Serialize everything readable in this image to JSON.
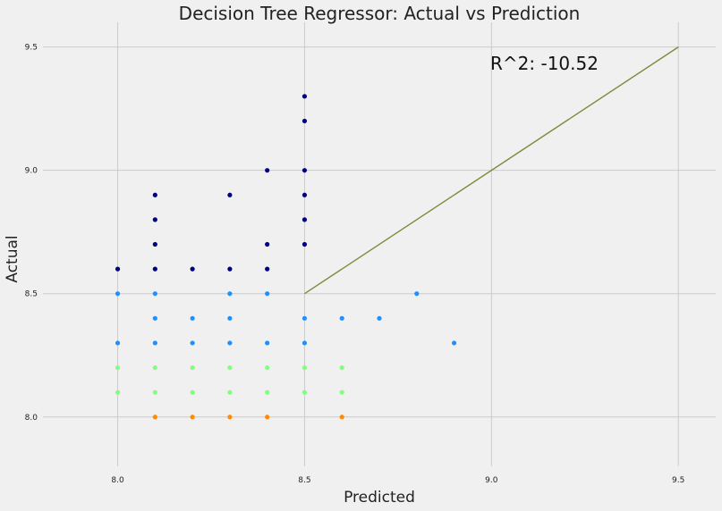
{
  "chart_data": {
    "type": "scatter",
    "title": "Decision Tree Regressor: Actual vs Prediction",
    "xlabel": "Predicted",
    "ylabel": "Actual",
    "xlim": [
      7.8,
      9.6
    ],
    "ylim": [
      7.8,
      9.6
    ],
    "xticks": [
      "8.0",
      "8.5",
      "9.0",
      "9.5"
    ],
    "yticks": [
      "8.0",
      "8.5",
      "9.0",
      "9.5"
    ],
    "grid": true,
    "annotation": {
      "text": "R^2: -10.52",
      "x": 9.0,
      "y": 9.5
    },
    "reference_line": {
      "x": [
        8.5,
        9.5
      ],
      "y": [
        8.5,
        9.5
      ],
      "color": "#7f8a3f"
    },
    "point_colors": {
      "8.0": "#ff8c00",
      "8.1": "#7fff7f",
      "8.2": "#7fff7f",
      "8.3": "#1e90ff",
      "8.4": "#1e90ff",
      "8.5": "#1e90ff",
      "high": "#000080"
    },
    "points": [
      {
        "x": 8.0,
        "y": 8.6
      },
      {
        "x": 8.0,
        "y": 8.5
      },
      {
        "x": 8.0,
        "y": 8.3
      },
      {
        "x": 8.0,
        "y": 8.2
      },
      {
        "x": 8.0,
        "y": 8.1
      },
      {
        "x": 8.1,
        "y": 8.9
      },
      {
        "x": 8.1,
        "y": 8.8
      },
      {
        "x": 8.1,
        "y": 8.7
      },
      {
        "x": 8.1,
        "y": 8.6
      },
      {
        "x": 8.1,
        "y": 8.5
      },
      {
        "x": 8.1,
        "y": 8.4
      },
      {
        "x": 8.1,
        "y": 8.3
      },
      {
        "x": 8.1,
        "y": 8.2
      },
      {
        "x": 8.1,
        "y": 8.1
      },
      {
        "x": 8.1,
        "y": 8.0
      },
      {
        "x": 8.2,
        "y": 8.6
      },
      {
        "x": 8.2,
        "y": 8.4
      },
      {
        "x": 8.2,
        "y": 8.3
      },
      {
        "x": 8.2,
        "y": 8.2
      },
      {
        "x": 8.2,
        "y": 8.1
      },
      {
        "x": 8.2,
        "y": 8.0
      },
      {
        "x": 8.3,
        "y": 8.9
      },
      {
        "x": 8.3,
        "y": 8.6
      },
      {
        "x": 8.3,
        "y": 8.5
      },
      {
        "x": 8.3,
        "y": 8.4
      },
      {
        "x": 8.3,
        "y": 8.3
      },
      {
        "x": 8.3,
        "y": 8.2
      },
      {
        "x": 8.3,
        "y": 8.1
      },
      {
        "x": 8.3,
        "y": 8.0
      },
      {
        "x": 8.4,
        "y": 9.0
      },
      {
        "x": 8.4,
        "y": 8.7
      },
      {
        "x": 8.4,
        "y": 8.6
      },
      {
        "x": 8.4,
        "y": 8.5
      },
      {
        "x": 8.4,
        "y": 8.3
      },
      {
        "x": 8.4,
        "y": 8.2
      },
      {
        "x": 8.4,
        "y": 8.1
      },
      {
        "x": 8.4,
        "y": 8.0
      },
      {
        "x": 8.5,
        "y": 9.3
      },
      {
        "x": 8.5,
        "y": 9.2
      },
      {
        "x": 8.5,
        "y": 9.0
      },
      {
        "x": 8.5,
        "y": 8.9
      },
      {
        "x": 8.5,
        "y": 8.8
      },
      {
        "x": 8.5,
        "y": 8.7
      },
      {
        "x": 8.5,
        "y": 8.4
      },
      {
        "x": 8.5,
        "y": 8.3
      },
      {
        "x": 8.5,
        "y": 8.2
      },
      {
        "x": 8.5,
        "y": 8.1
      },
      {
        "x": 8.6,
        "y": 8.4
      },
      {
        "x": 8.6,
        "y": 8.2
      },
      {
        "x": 8.6,
        "y": 8.1
      },
      {
        "x": 8.6,
        "y": 8.0
      },
      {
        "x": 8.7,
        "y": 8.4
      },
      {
        "x": 8.8,
        "y": 8.5
      },
      {
        "x": 8.9,
        "y": 8.3
      }
    ]
  }
}
